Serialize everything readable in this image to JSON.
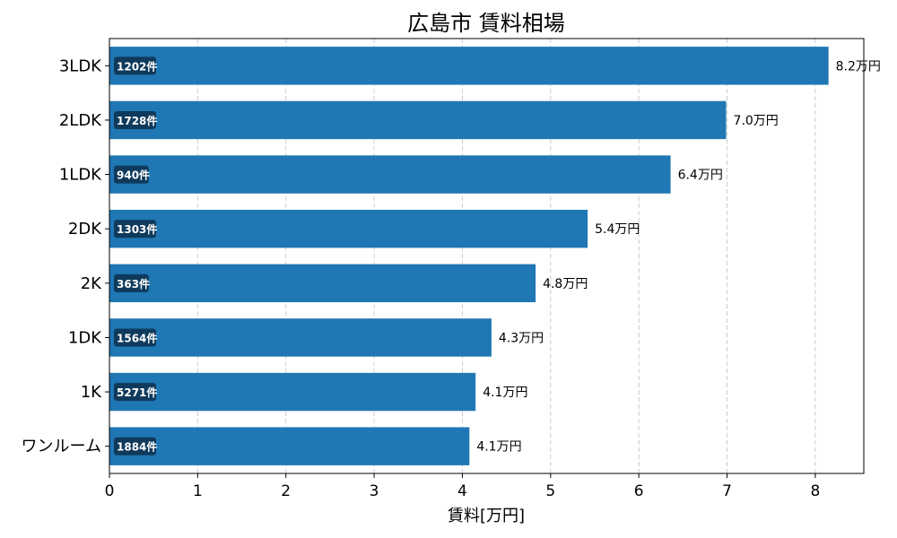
{
  "chart_data": {
    "type": "bar",
    "orientation": "horizontal",
    "title": "広島市 賃料相場",
    "xlabel": "賃料[万円]",
    "ylabel": "",
    "xlim": [
      0,
      8.55
    ],
    "x_ticks": [
      "0",
      "1",
      "2",
      "3",
      "4",
      "5",
      "6",
      "7",
      "8"
    ],
    "grid": "vertical dashed",
    "bar_color": "#1f77b4",
    "count_badge_color": "#0f3a5c",
    "categories": [
      "3LDK",
      "2LDK",
      "1LDK",
      "2DK",
      "2K",
      "1DK",
      "1K",
      "ワンルーム"
    ],
    "values": [
      8.15,
      6.99,
      6.36,
      5.42,
      4.83,
      4.33,
      4.15,
      4.08
    ],
    "value_labels": [
      "8.2万円",
      "7.0万円",
      "6.4万円",
      "5.4万円",
      "4.8万円",
      "4.3万円",
      "4.1万円",
      "4.1万円"
    ],
    "count_labels": [
      "1202件",
      "1728件",
      "940件",
      "1303件",
      "363件",
      "1564件",
      "5271件",
      "1884件"
    ]
  }
}
